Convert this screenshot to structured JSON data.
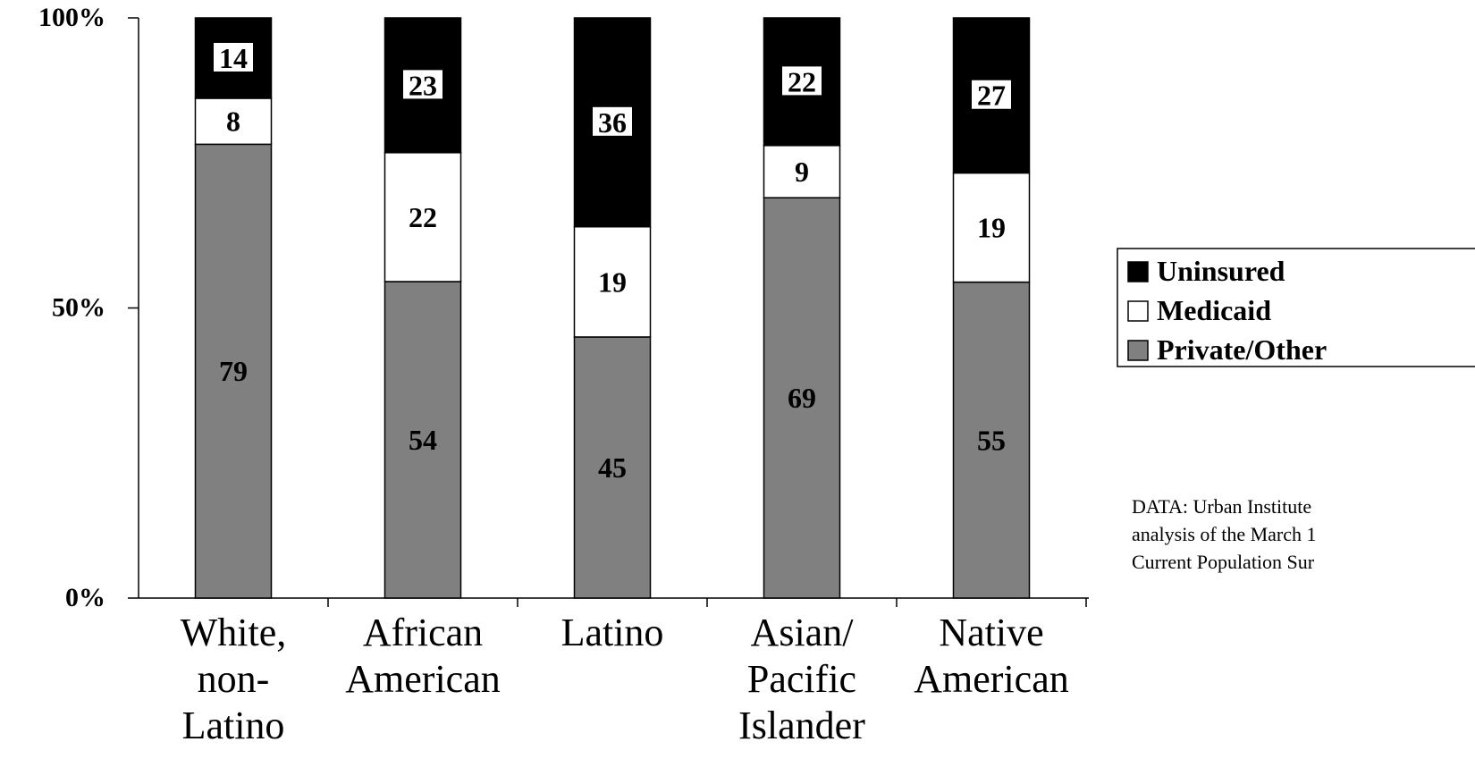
{
  "chart_data": {
    "type": "bar",
    "stacked": true,
    "categories": [
      [
        "White,",
        "non-",
        "Latino"
      ],
      [
        "African",
        "American"
      ],
      [
        "Latino"
      ],
      [
        "Asian/",
        "Pacific",
        "Islander"
      ],
      [
        "Native",
        "American"
      ]
    ],
    "series": [
      {
        "name": "Private/Other",
        "color": "#808080",
        "values": [
          79,
          54,
          45,
          69,
          55
        ]
      },
      {
        "name": "Medicaid",
        "color": "#ffffff",
        "values": [
          8,
          22,
          19,
          9,
          19
        ]
      },
      {
        "name": "Uninsured",
        "color": "#000000",
        "values": [
          14,
          23,
          36,
          22,
          27
        ]
      }
    ],
    "legend_order": [
      "Uninsured",
      "Medicaid",
      "Private/Other"
    ],
    "legend_position": "right",
    "ylim": [
      0,
      100
    ],
    "yticks": [
      "0%",
      "50%",
      "100%"
    ],
    "ytick_values": [
      0,
      50,
      100
    ],
    "grid": false,
    "source_lines": [
      "DATA: Urban Institute",
      "analysis of the March 1",
      "Current Population Sur"
    ]
  }
}
